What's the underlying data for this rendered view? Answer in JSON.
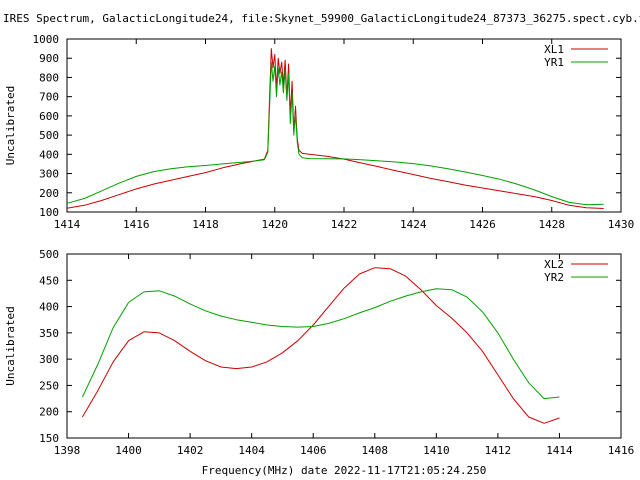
{
  "header": {
    "title": "IRES Spectrum, GalacticLongitude24, file:Skynet_59900_GalacticLongitude24_87373_36275.spect.cyb.txt"
  },
  "colors": {
    "xl": "#cc0000",
    "yr": "#00a000",
    "axis": "#000000"
  },
  "chart_data": [
    {
      "type": "line",
      "title": "IRES Spectrum, GalacticLongitude24, file:Skynet_59900_GalacticLongitude24_87373_36275.spect.cyb.txt",
      "xlabel": "",
      "ylabel": "Uncalibrated",
      "xlim": [
        1414,
        1430
      ],
      "ylim": [
        100,
        1000
      ],
      "xticks": [
        1414,
        1416,
        1418,
        1420,
        1422,
        1424,
        1426,
        1428,
        1430
      ],
      "yticks": [
        100,
        200,
        300,
        400,
        500,
        600,
        700,
        800,
        900,
        1000
      ],
      "grid": false,
      "legend_position": "top-right",
      "series": [
        {
          "name": "XL1",
          "color": "#cc0000",
          "x": [
            1414.0,
            1414.5,
            1415.0,
            1415.5,
            1416.0,
            1416.5,
            1417.0,
            1417.5,
            1418.0,
            1418.5,
            1419.0,
            1419.4,
            1419.7,
            1419.8,
            1419.85,
            1419.9,
            1419.95,
            1420.0,
            1420.05,
            1420.1,
            1420.15,
            1420.2,
            1420.25,
            1420.3,
            1420.35,
            1420.4,
            1420.45,
            1420.5,
            1420.55,
            1420.6,
            1420.65,
            1420.7,
            1420.8,
            1421.0,
            1421.5,
            1422.0,
            1422.5,
            1423.0,
            1423.5,
            1424.0,
            1424.5,
            1425.0,
            1425.5,
            1426.0,
            1426.5,
            1427.0,
            1427.5,
            1428.0,
            1428.5,
            1429.0,
            1429.5
          ],
          "y": [
            120,
            135,
            160,
            190,
            220,
            245,
            265,
            285,
            305,
            330,
            350,
            365,
            375,
            420,
            700,
            950,
            850,
            920,
            740,
            900,
            820,
            880,
            760,
            890,
            700,
            870,
            600,
            780,
            520,
            650,
            480,
            420,
            405,
            400,
            390,
            375,
            355,
            335,
            315,
            295,
            275,
            258,
            240,
            225,
            210,
            195,
            180,
            160,
            135,
            122,
            118
          ]
        },
        {
          "name": "YR1",
          "color": "#00a000",
          "x": [
            1414.0,
            1414.5,
            1415.0,
            1415.5,
            1416.0,
            1416.5,
            1417.0,
            1417.5,
            1418.0,
            1418.5,
            1419.0,
            1419.4,
            1419.7,
            1419.8,
            1419.85,
            1419.9,
            1419.95,
            1420.0,
            1420.05,
            1420.1,
            1420.15,
            1420.2,
            1420.25,
            1420.3,
            1420.35,
            1420.4,
            1420.45,
            1420.5,
            1420.55,
            1420.6,
            1420.65,
            1420.7,
            1420.8,
            1421.0,
            1421.5,
            1422.0,
            1422.5,
            1423.0,
            1423.5,
            1424.0,
            1424.5,
            1425.0,
            1425.5,
            1426.0,
            1426.5,
            1427.0,
            1427.5,
            1428.0,
            1428.5,
            1429.0,
            1429.5
          ],
          "y": [
            145,
            170,
            210,
            250,
            285,
            310,
            325,
            335,
            342,
            350,
            358,
            365,
            372,
            410,
            650,
            880,
            780,
            860,
            700,
            850,
            760,
            830,
            720,
            840,
            680,
            820,
            560,
            720,
            500,
            610,
            460,
            400,
            382,
            378,
            377,
            376,
            372,
            366,
            360,
            352,
            340,
            325,
            308,
            290,
            270,
            245,
            215,
            180,
            150,
            138,
            140
          ]
        }
      ]
    },
    {
      "type": "line",
      "title": "",
      "xlabel": "Frequency(MHz) date 2022-11-17T21:05:24.250",
      "ylabel": "Uncalibrated",
      "xlim": [
        1398,
        1416
      ],
      "ylim": [
        150,
        500
      ],
      "xticks": [
        1398,
        1400,
        1402,
        1404,
        1406,
        1408,
        1410,
        1412,
        1414,
        1416
      ],
      "yticks": [
        150,
        200,
        250,
        300,
        350,
        400,
        450,
        500
      ],
      "grid": false,
      "legend_position": "top-right",
      "series": [
        {
          "name": "XL2",
          "color": "#cc0000",
          "x": [
            1398.5,
            1399.0,
            1399.5,
            1400.0,
            1400.5,
            1401.0,
            1401.5,
            1402.0,
            1402.5,
            1403.0,
            1403.5,
            1404.0,
            1404.5,
            1405.0,
            1405.5,
            1406.0,
            1406.5,
            1407.0,
            1407.5,
            1408.0,
            1408.5,
            1409.0,
            1409.5,
            1410.0,
            1410.5,
            1411.0,
            1411.5,
            1412.0,
            1412.5,
            1413.0,
            1413.5,
            1414.0
          ],
          "y": [
            190,
            240,
            295,
            335,
            352,
            350,
            335,
            315,
            297,
            285,
            282,
            285,
            295,
            312,
            335,
            365,
            400,
            435,
            462,
            474,
            472,
            458,
            432,
            402,
            378,
            350,
            315,
            270,
            225,
            190,
            178,
            188
          ]
        },
        {
          "name": "YR2",
          "color": "#00a000",
          "x": [
            1398.5,
            1399.0,
            1399.5,
            1400.0,
            1400.5,
            1401.0,
            1401.5,
            1402.0,
            1402.5,
            1403.0,
            1403.5,
            1404.0,
            1404.5,
            1405.0,
            1405.5,
            1406.0,
            1406.5,
            1407.0,
            1407.5,
            1408.0,
            1408.5,
            1409.0,
            1409.5,
            1410.0,
            1410.5,
            1411.0,
            1411.5,
            1412.0,
            1412.5,
            1413.0,
            1413.5,
            1414.0
          ],
          "y": [
            228,
            290,
            360,
            408,
            428,
            430,
            420,
            405,
            392,
            382,
            375,
            370,
            365,
            362,
            361,
            362,
            368,
            377,
            388,
            398,
            410,
            420,
            428,
            434,
            432,
            418,
            390,
            350,
            300,
            255,
            225,
            228
          ]
        }
      ]
    }
  ]
}
